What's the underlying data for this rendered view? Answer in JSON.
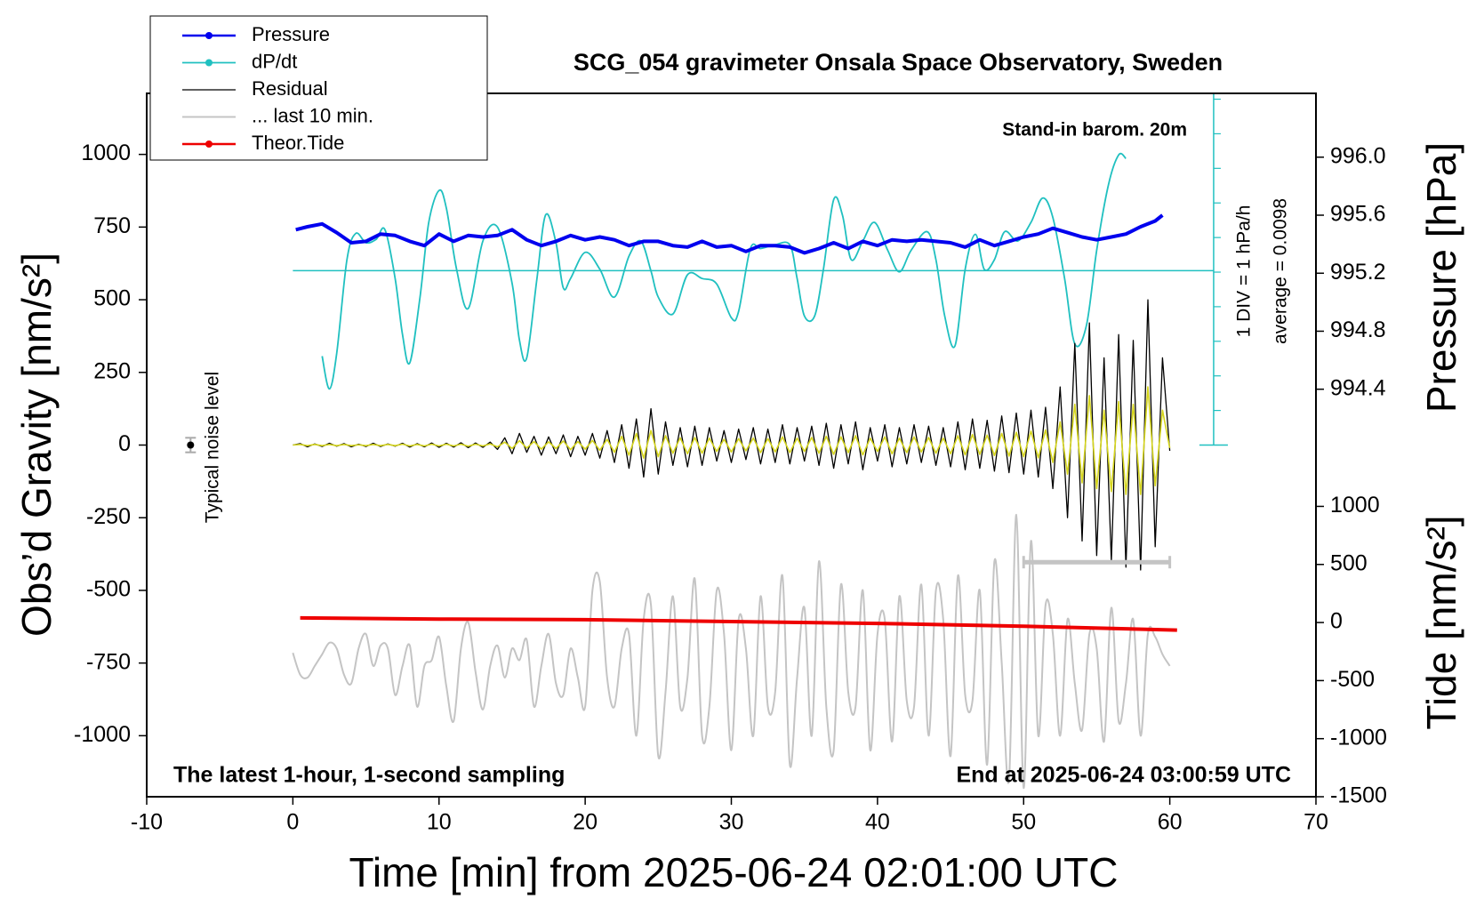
{
  "chart_data": {
    "type": "line",
    "title": "SCG_054 gravimeter Onsala Space Observatory, Sweden",
    "x_label": "Time [min] from 2025-06-24 02:01:00 UTC",
    "y_label": "Obs’d Gravity [nm/s²]",
    "y2_label": "Pressure [hPa]",
    "y3_label": "Tide [nm/s²]",
    "xlim": [
      -10,
      70
    ],
    "xticks": [
      -10,
      0,
      10,
      20,
      30,
      40,
      50,
      60,
      70
    ],
    "ylim": [
      -1210,
      1210
    ],
    "yticks": [
      -1000,
      -750,
      -500,
      -250,
      0,
      250,
      500,
      750,
      1000
    ],
    "y2lim": [
      991.59,
      996.44
    ],
    "y2ticks": [
      994.4,
      994.8,
      995.2,
      995.6,
      {
        "value": 996,
        "label": "996.0"
      }
    ],
    "y3lim": [
      -1500,
      4556
    ],
    "y3ticks": [
      -1500,
      -1000,
      -500,
      0,
      500,
      1000
    ],
    "annotations": {
      "barometer": "Stand-in barom. 20m",
      "div": "1 DIV = 1 hPa/h",
      "average": "average = 0.0098",
      "noise": "Typical noise level",
      "sampling": "The latest 1-hour, 1-second sampling",
      "end": "End at 2025-06-24 03:00:59 UTC"
    },
    "noise_bar": {
      "x": -7,
      "value": 0,
      "error": 25
    },
    "dpdt_zero": 600,
    "scale_bar": {
      "x": 63,
      "bottom": 0,
      "top": 1210,
      "div": 119
    },
    "last10_bar": {
      "x": [
        50,
        60
      ],
      "value": -403
    },
    "x": [
      0,
      0.5,
      1,
      1.5,
      2,
      2.5,
      3,
      3.5,
      4,
      4.5,
      5,
      5.5,
      6,
      6.5,
      7,
      7.5,
      8,
      8.5,
      9,
      9.5,
      10,
      10.5,
      11,
      11.5,
      12,
      12.5,
      13,
      13.5,
      14,
      14.5,
      15,
      15.5,
      16,
      16.5,
      17,
      17.5,
      18,
      18.5,
      19,
      19.5,
      20,
      20.5,
      21,
      21.5,
      22,
      22.5,
      23,
      23.5,
      24,
      24.5,
      25,
      25.5,
      26,
      26.5,
      27,
      27.5,
      28,
      28.5,
      29,
      29.5,
      30,
      30.5,
      31,
      31.5,
      32,
      32.5,
      33,
      33.5,
      34,
      34.5,
      35,
      35.5,
      36,
      36.5,
      37,
      37.5,
      38,
      38.5,
      39,
      39.5,
      40,
      40.5,
      41,
      41.5,
      42,
      42.5,
      43,
      43.5,
      44,
      44.5,
      45,
      45.5,
      46,
      46.5,
      47,
      47.5,
      48,
      48.5,
      49,
      49.5,
      50,
      50.5,
      51,
      51.5,
      52,
      52.5,
      53,
      53.5,
      54,
      54.5,
      55,
      55.5,
      56,
      56.5,
      57,
      57.5,
      58,
      58.5,
      59,
      59.5,
      60
    ],
    "series": [
      {
        "name": "Pressure",
        "color": "#0000ee",
        "width": 4,
        "marker": true,
        "axis": "y2",
        "x": [
          0.2,
          1,
          2,
          3,
          4,
          5,
          6,
          7,
          8,
          9,
          10,
          11,
          12,
          13,
          14,
          15,
          16,
          17,
          18,
          19,
          20,
          21,
          22,
          23,
          24,
          25,
          26,
          27,
          28,
          29,
          30,
          31,
          32,
          33,
          34,
          35,
          36,
          37,
          38,
          39,
          40,
          41,
          42,
          43,
          44,
          45,
          46,
          47,
          48,
          49,
          50,
          51,
          52,
          53,
          54,
          55,
          56,
          57,
          58,
          59,
          59.5
        ],
        "values": [
          995.5,
          995.52,
          995.54,
          995.48,
          995.41,
          995.42,
          995.47,
          995.46,
          995.42,
          995.39,
          995.47,
          995.42,
          995.46,
          995.45,
          995.46,
          995.5,
          995.43,
          995.39,
          995.42,
          995.46,
          995.43,
          995.45,
          995.43,
          995.39,
          995.42,
          995.42,
          995.39,
          995.38,
          995.42,
          995.38,
          995.39,
          995.35,
          995.39,
          995.39,
          995.38,
          995.34,
          995.37,
          995.41,
          995.37,
          995.42,
          995.39,
          995.43,
          995.42,
          995.43,
          995.42,
          995.41,
          995.38,
          995.43,
          995.39,
          995.42,
          995.45,
          995.47,
          995.51,
          995.48,
          995.45,
          995.43,
          995.45,
          995.47,
          995.52,
          995.56,
          995.6
        ]
      },
      {
        "name": "dP/dt",
        "color": "#20c0c0",
        "width": 1.8,
        "marker": true,
        "axis": "y",
        "x": [
          2,
          2.5,
          3,
          3.7,
          4.3,
          5,
          5.7,
          6.3,
          7,
          7.5,
          8,
          8.7,
          9.3,
          10,
          10.5,
          11.2,
          12,
          13,
          14,
          15,
          15.5,
          16,
          16.7,
          17.3,
          18,
          18.5,
          19,
          20,
          21,
          22,
          23,
          23.8,
          24.5,
          25,
          26,
          27,
          28,
          29,
          30,
          30.5,
          31.3,
          32,
          33,
          34,
          34.5,
          35,
          35.7,
          36.3,
          37,
          37.6,
          38.2,
          39,
          39.8,
          40.7,
          41.5,
          42.3,
          43.4,
          44,
          44.6,
          45.3,
          46,
          46.7,
          47.3,
          48,
          48.7,
          49.6,
          50.5,
          51.3,
          52,
          52.8,
          53.5,
          54.3,
          55,
          55.8,
          56.5,
          57
        ],
        "values": [
          306,
          193,
          316,
          638,
          728,
          696,
          708,
          741,
          573,
          380,
          283,
          509,
          766,
          876,
          815,
          605,
          470,
          702,
          750,
          557,
          361,
          300,
          573,
          792,
          696,
          541,
          573,
          663,
          605,
          509,
          650,
          702,
          599,
          509,
          451,
          586,
          573,
          554,
          438,
          460,
          676,
          676,
          689,
          689,
          573,
          444,
          444,
          605,
          844,
          792,
          638,
          702,
          766,
          670,
          596,
          670,
          734,
          638,
          444,
          341,
          605,
          725,
          605,
          638,
          734,
          702,
          766,
          850,
          783,
          573,
          348,
          412,
          670,
          895,
          998,
          986
        ]
      },
      {
        "name": "Residual",
        "color": "#000000",
        "width": 1.3,
        "axis": "y",
        "values": [
          0,
          5,
          -6,
          4,
          -5,
          6,
          -4,
          5,
          -6,
          3,
          -5,
          6,
          -5,
          4,
          -4,
          6,
          -7,
          5,
          -6,
          7,
          -8,
          6,
          -7,
          8,
          -9,
          7,
          -8,
          10,
          -15,
          25,
          -30,
          40,
          -25,
          30,
          -35,
          28,
          -30,
          35,
          -40,
          30,
          -35,
          40,
          -45,
          50,
          -60,
          70,
          -80,
          90,
          -110,
          125,
          -100,
          80,
          -70,
          60,
          -75,
          65,
          -70,
          60,
          -55,
          50,
          -60,
          55,
          -50,
          60,
          -65,
          55,
          -60,
          70,
          -65,
          60,
          -55,
          65,
          -70,
          75,
          -80,
          70,
          -65,
          80,
          -85,
          60,
          -55,
          70,
          -75,
          60,
          -65,
          70,
          -60,
          65,
          -70,
          60,
          -75,
          80,
          -85,
          90,
          -80,
          85,
          -90,
          100,
          -95,
          110,
          -100,
          120,
          -110,
          130,
          -150,
          200,
          -250,
          350,
          -330,
          420,
          -380,
          300,
          -400,
          380,
          -420,
          360,
          -430,
          500,
          -350,
          300,
          -20
        ]
      },
      {
        "color": "#d4d41c",
        "width": 1.6,
        "axis": "y",
        "values": [
          0,
          2,
          -2,
          2,
          -2,
          2,
          -2,
          2,
          -2,
          1,
          -2,
          2,
          -2,
          2,
          -2,
          3,
          -3,
          2,
          -3,
          3,
          -3,
          3,
          -3,
          3,
          -4,
          3,
          -3,
          4,
          -6,
          10,
          -12,
          15,
          -10,
          12,
          -14,
          11,
          -12,
          14,
          -16,
          12,
          -14,
          16,
          -18,
          20,
          -25,
          30,
          -35,
          40,
          -45,
          50,
          -40,
          32,
          -28,
          25,
          -30,
          26,
          -28,
          24,
          -22,
          20,
          -24,
          22,
          -20,
          24,
          -26,
          22,
          -24,
          28,
          -26,
          24,
          -22,
          26,
          -28,
          30,
          -32,
          28,
          -26,
          32,
          -34,
          24,
          -22,
          28,
          -30,
          24,
          -26,
          28,
          -24,
          26,
          -28,
          24,
          -30,
          32,
          -34,
          36,
          -32,
          34,
          -36,
          40,
          -38,
          44,
          -40,
          48,
          -44,
          52,
          -60,
          80,
          -100,
          140,
          -130,
          170,
          -150,
          120,
          -160,
          150,
          -170,
          140,
          -170,
          200,
          -140,
          120,
          -10
        ]
      },
      {
        "name": "... last 10 min.",
        "color": "#c4c4c4",
        "width": 2,
        "axis": "y",
        "values": [
          -715,
          -790,
          -800,
          -760,
          -720,
          -680,
          -700,
          -790,
          -820,
          -700,
          -650,
          -760,
          -690,
          -700,
          -860,
          -760,
          -690,
          -900,
          -760,
          -740,
          -660,
          -830,
          -950,
          -700,
          -610,
          -780,
          -910,
          -760,
          -690,
          -800,
          -700,
          -740,
          -670,
          -900,
          -760,
          -650,
          -820,
          -860,
          -700,
          -800,
          -900,
          -500,
          -470,
          -800,
          -900,
          -700,
          -650,
          -1000,
          -600,
          -550,
          -1070,
          -850,
          -520,
          -900,
          -800,
          -460,
          -1000,
          -900,
          -500,
          -650,
          -1050,
          -600,
          -700,
          -1000,
          -520,
          -900,
          -850,
          -450,
          -1100,
          -800,
          -560,
          -1000,
          -400,
          -900,
          -1050,
          -480,
          -850,
          -900,
          -500,
          -1050,
          -650,
          -600,
          -1020,
          -520,
          -880,
          -900,
          -480,
          -1000,
          -500,
          -600,
          -1070,
          -450,
          -860,
          -880,
          -500,
          -1100,
          -400,
          -750,
          -1150,
          -240,
          -1180,
          -330,
          -1000,
          -550,
          -650,
          -1000,
          -600,
          -820,
          -980,
          -650,
          -700,
          -1020,
          -560,
          -950,
          -820,
          -600,
          -1000,
          -650,
          -660,
          -720,
          -760
        ]
      },
      {
        "name": "Theor.Tide",
        "color": "#ee0000",
        "width": 4,
        "marker": true,
        "axis": "y3",
        "x": [
          0.5,
          10,
          20,
          30,
          40,
          50,
          60.5
        ],
        "values": [
          40,
          30,
          24,
          8,
          -8,
          -32,
          -65
        ]
      }
    ]
  }
}
